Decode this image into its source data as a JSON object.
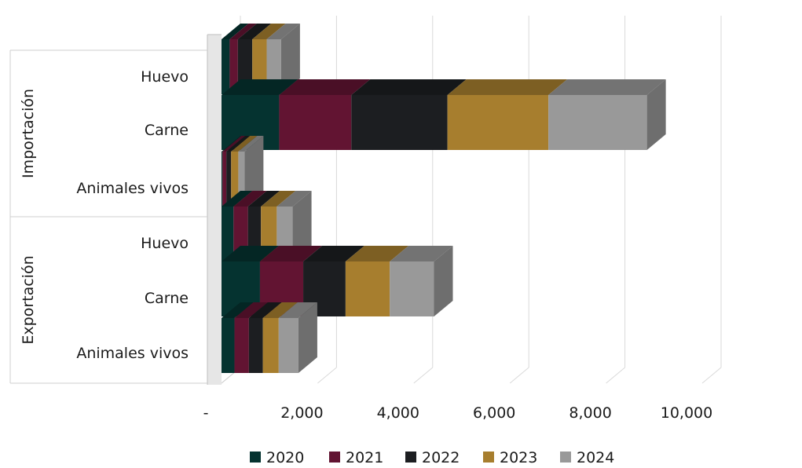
{
  "chart_data": {
    "type": "bar",
    "orientation": "horizontal",
    "stacked": true,
    "three_d": true,
    "groups": [
      {
        "name": "Importación",
        "categories": [
          "Huevo",
          "Carne",
          "Animales vivos"
        ]
      },
      {
        "name": "Exportación",
        "categories": [
          "Huevo",
          "Carne",
          "Animales vivos"
        ]
      }
    ],
    "series": [
      {
        "name": "2020",
        "color": "#053330",
        "values": [
          170,
          1200,
          20,
          250,
          800,
          270
        ]
      },
      {
        "name": "2021",
        "color": "#621432",
        "values": [
          170,
          1500,
          80,
          300,
          900,
          300
        ]
      },
      {
        "name": "2022",
        "color": "#1c1e21",
        "values": [
          300,
          2000,
          100,
          270,
          880,
          290
        ]
      },
      {
        "name": "2023",
        "color": "#a77e2e",
        "values": [
          300,
          2100,
          150,
          330,
          920,
          330
        ]
      },
      {
        "name": "2024",
        "color": "#999999",
        "values": [
          300,
          2050,
          130,
          330,
          920,
          410
        ]
      }
    ],
    "x_ticks": [
      "-",
      "2,000",
      "4,000",
      "6,000",
      "8,000",
      "10,000"
    ],
    "xlim": [
      0,
      10000
    ],
    "grid": true,
    "legend_position": "bottom"
  }
}
